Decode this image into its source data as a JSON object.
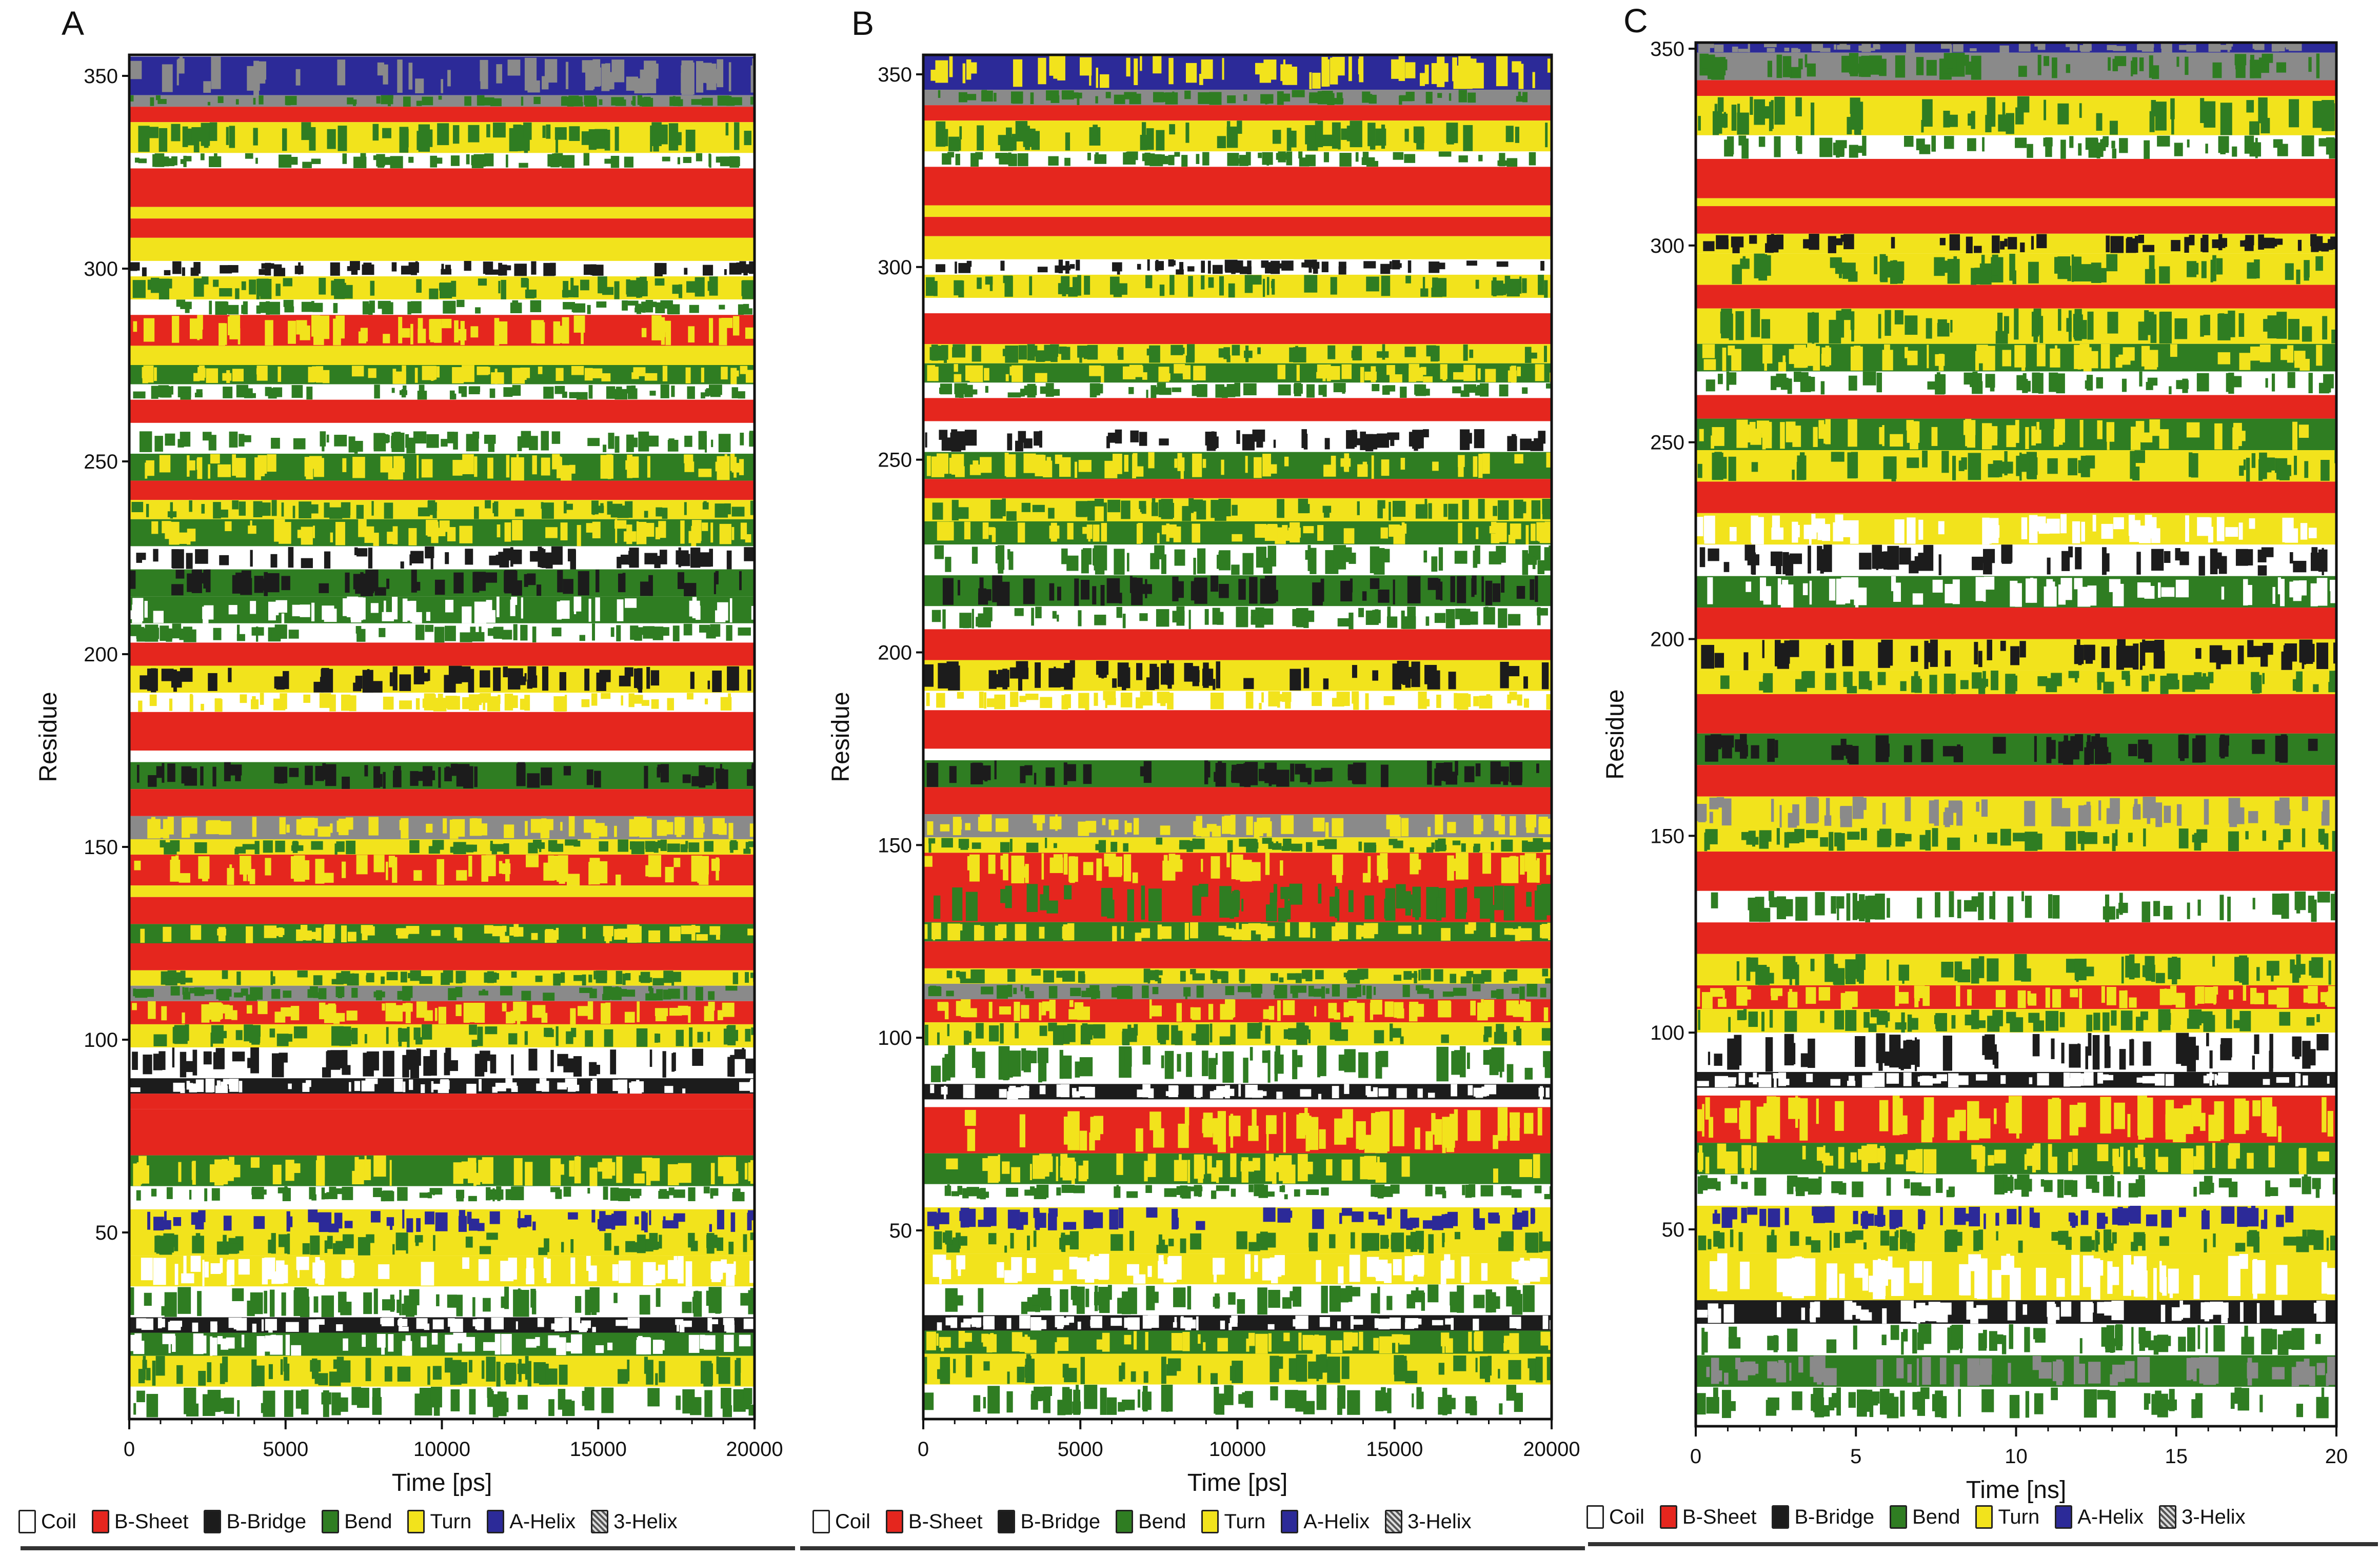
{
  "legend_items": [
    {
      "code": "C",
      "label": "Coil",
      "color": "#ffffff"
    },
    {
      "code": "E",
      "label": "B-Sheet",
      "color": "#e5261e"
    },
    {
      "code": "B",
      "label": "B-Bridge",
      "color": "#1c1c1c"
    },
    {
      "code": "S",
      "label": "Bend",
      "color": "#2f7d22"
    },
    {
      "code": "T",
      "label": "Turn",
      "color": "#f2e31c"
    },
    {
      "code": "H",
      "label": "A-Helix",
      "color": "#2c2a98"
    },
    {
      "code": "G",
      "label": "3-Helix",
      "color": "#8a8a8a"
    }
  ],
  "chart_data": [
    {
      "panel": "A",
      "type": "heatmap",
      "xlabel": "Time [ps]",
      "ylabel": "Residue",
      "xlim": [
        0,
        20000
      ],
      "ylim": [
        1,
        355
      ],
      "xticks": [
        0,
        5000,
        10000,
        15000,
        20000
      ],
      "yticks": [
        50,
        100,
        150,
        200,
        250,
        300,
        350
      ],
      "bands": [
        [
          345,
          355,
          "H",
          "G"
        ],
        [
          342,
          345,
          "G",
          "S"
        ],
        [
          338,
          342,
          "E"
        ],
        [
          330,
          338,
          "T",
          "S"
        ],
        [
          326,
          330,
          "C",
          "S"
        ],
        [
          316,
          326,
          "E"
        ],
        [
          313,
          316,
          "T"
        ],
        [
          308,
          313,
          "E"
        ],
        [
          302,
          308,
          "T"
        ],
        [
          298,
          302,
          "C",
          "B"
        ],
        [
          292,
          298,
          "T",
          "S"
        ],
        [
          288,
          292,
          "C",
          "S"
        ],
        [
          280,
          288,
          "E",
          "T"
        ],
        [
          275,
          280,
          "T"
        ],
        [
          270,
          275,
          "S",
          "T"
        ],
        [
          266,
          270,
          "C",
          "S"
        ],
        [
          260,
          266,
          "E"
        ],
        [
          252,
          258,
          "C",
          "S"
        ],
        [
          245,
          252,
          "S",
          "T"
        ],
        [
          240,
          245,
          "E"
        ],
        [
          235,
          240,
          "T",
          "S"
        ],
        [
          228,
          235,
          "S",
          "T"
        ],
        [
          222,
          228,
          "C",
          "B"
        ],
        [
          215,
          222,
          "S",
          "B"
        ],
        [
          208,
          215,
          "S",
          "C"
        ],
        [
          203,
          208,
          "C",
          "S"
        ],
        [
          197,
          203,
          "E"
        ],
        [
          190,
          197,
          "T",
          "B"
        ],
        [
          185,
          190,
          "C",
          "T"
        ],
        [
          175,
          185,
          "E"
        ],
        [
          172,
          175,
          "C"
        ],
        [
          165,
          172,
          "S",
          "B"
        ],
        [
          158,
          165,
          "E"
        ],
        [
          152,
          158,
          "G",
          "T"
        ],
        [
          148,
          152,
          "T",
          "S"
        ],
        [
          140,
          148,
          "E",
          "T"
        ],
        [
          137,
          140,
          "T"
        ],
        [
          130,
          137,
          "E"
        ],
        [
          125,
          130,
          "S",
          "T"
        ],
        [
          118,
          125,
          "E"
        ],
        [
          114,
          118,
          "T",
          "S"
        ],
        [
          110,
          114,
          "G",
          "S"
        ],
        [
          104,
          110,
          "E",
          "T"
        ],
        [
          98,
          104,
          "T",
          "S"
        ],
        [
          90,
          98,
          "C",
          "B"
        ],
        [
          86,
          90,
          "B",
          "C"
        ],
        [
          82,
          86,
          "E"
        ],
        [
          76,
          79,
          "T"
        ],
        [
          70,
          82,
          "E"
        ],
        [
          62,
          70,
          "S",
          "T"
        ],
        [
          58,
          62,
          "C",
          "S"
        ],
        [
          50,
          56,
          "T",
          "H"
        ],
        [
          44,
          50,
          "T",
          "S"
        ],
        [
          36,
          44,
          "T",
          "C"
        ],
        [
          28,
          36,
          "C",
          "S"
        ],
        [
          24,
          28,
          "B",
          "C"
        ],
        [
          18,
          24,
          "S",
          "C"
        ],
        [
          10,
          18,
          "T",
          "S"
        ],
        [
          2,
          10,
          "C",
          "S"
        ]
      ]
    },
    {
      "panel": "B",
      "type": "heatmap",
      "xlabel": "Time [ps]",
      "ylabel": "Residue",
      "xlim": [
        0,
        20000
      ],
      "ylim": [
        1,
        355
      ],
      "xticks": [
        0,
        5000,
        10000,
        15000,
        20000
      ],
      "yticks": [
        50,
        100,
        150,
        200,
        250,
        300,
        350
      ],
      "bands": [
        [
          346,
          355,
          "H",
          "T"
        ],
        [
          342,
          346,
          "G",
          "S"
        ],
        [
          338,
          342,
          "E"
        ],
        [
          330,
          338,
          "T",
          "S"
        ],
        [
          326,
          330,
          "C",
          "S"
        ],
        [
          316,
          326,
          "E"
        ],
        [
          313,
          316,
          "T"
        ],
        [
          308,
          313,
          "E"
        ],
        [
          302,
          308,
          "T"
        ],
        [
          298,
          302,
          "C",
          "B"
        ],
        [
          292,
          298,
          "T",
          "S"
        ],
        [
          288,
          292,
          "C"
        ],
        [
          280,
          288,
          "E"
        ],
        [
          275,
          280,
          "T",
          "S"
        ],
        [
          270,
          275,
          "S",
          "T"
        ],
        [
          266,
          270,
          "C",
          "S"
        ],
        [
          260,
          266,
          "E"
        ],
        [
          252,
          258,
          "C",
          "B"
        ],
        [
          245,
          252,
          "S",
          "T"
        ],
        [
          240,
          245,
          "E"
        ],
        [
          234,
          240,
          "T",
          "S"
        ],
        [
          228,
          234,
          "S",
          "T"
        ],
        [
          220,
          228,
          "C",
          "S"
        ],
        [
          212,
          220,
          "S",
          "B"
        ],
        [
          206,
          212,
          "C",
          "S"
        ],
        [
          198,
          206,
          "E"
        ],
        [
          190,
          198,
          "T",
          "B"
        ],
        [
          185,
          190,
          "C",
          "T"
        ],
        [
          175,
          185,
          "E"
        ],
        [
          172,
          175,
          "C"
        ],
        [
          165,
          172,
          "S",
          "B"
        ],
        [
          158,
          165,
          "E"
        ],
        [
          152,
          158,
          "G",
          "T"
        ],
        [
          148,
          152,
          "T",
          "S"
        ],
        [
          140,
          148,
          "E",
          "T"
        ],
        [
          130,
          140,
          "E",
          "S"
        ],
        [
          125,
          130,
          "S",
          "T"
        ],
        [
          118,
          125,
          "E"
        ],
        [
          114,
          118,
          "T",
          "S"
        ],
        [
          110,
          114,
          "G",
          "S"
        ],
        [
          104,
          110,
          "E",
          "T"
        ],
        [
          98,
          104,
          "T",
          "S"
        ],
        [
          88,
          98,
          "C",
          "S"
        ],
        [
          84,
          88,
          "B",
          "C"
        ],
        [
          70,
          82,
          "E",
          "T"
        ],
        [
          62,
          70,
          "S",
          "T"
        ],
        [
          58,
          62,
          "C",
          "S"
        ],
        [
          50,
          56,
          "T",
          "H"
        ],
        [
          44,
          50,
          "T",
          "S"
        ],
        [
          36,
          44,
          "T",
          "C"
        ],
        [
          28,
          36,
          "C",
          "S"
        ],
        [
          24,
          28,
          "B",
          "C"
        ],
        [
          18,
          24,
          "S",
          "T"
        ],
        [
          10,
          18,
          "T",
          "S"
        ],
        [
          2,
          10,
          "C",
          "S"
        ]
      ]
    },
    {
      "panel": "C",
      "type": "heatmap",
      "xlabel": "Time [ns]",
      "ylabel": "Residue",
      "xlim": [
        0,
        20
      ],
      "ylim": [
        1,
        355
      ],
      "xticks": [
        0,
        5,
        10,
        15,
        20
      ],
      "yticks": [
        50,
        100,
        150,
        200,
        250,
        300,
        350
      ],
      "bands": [
        [
          349,
          355,
          "H",
          "G"
        ],
        [
          342,
          349,
          "G",
          "S"
        ],
        [
          338,
          342,
          "E"
        ],
        [
          328,
          338,
          "T",
          "S"
        ],
        [
          322,
          328,
          "C",
          "S"
        ],
        [
          312,
          322,
          "E"
        ],
        [
          310,
          312,
          "T"
        ],
        [
          303,
          310,
          "E"
        ],
        [
          298,
          303,
          "T",
          "B"
        ],
        [
          290,
          298,
          "T",
          "S"
        ],
        [
          284,
          290,
          "E"
        ],
        [
          275,
          284,
          "T",
          "S"
        ],
        [
          268,
          275,
          "S",
          "T"
        ],
        [
          262,
          268,
          "C",
          "S"
        ],
        [
          256,
          262,
          "E"
        ],
        [
          248,
          256,
          "S",
          "T"
        ],
        [
          240,
          248,
          "T",
          "S"
        ],
        [
          232,
          240,
          "E"
        ],
        [
          224,
          232,
          "T",
          "C"
        ],
        [
          216,
          224,
          "C",
          "B"
        ],
        [
          208,
          216,
          "S",
          "C"
        ],
        [
          200,
          208,
          "E"
        ],
        [
          192,
          200,
          "T",
          "B"
        ],
        [
          186,
          192,
          "T",
          "S"
        ],
        [
          176,
          186,
          "E"
        ],
        [
          168,
          176,
          "S",
          "B"
        ],
        [
          160,
          168,
          "E"
        ],
        [
          152,
          160,
          "T",
          "G"
        ],
        [
          146,
          152,
          "T",
          "S"
        ],
        [
          136,
          146,
          "E"
        ],
        [
          128,
          136,
          "C",
          "S"
        ],
        [
          120,
          128,
          "E"
        ],
        [
          112,
          120,
          "T",
          "S"
        ],
        [
          106,
          112,
          "E",
          "T"
        ],
        [
          100,
          106,
          "T",
          "S"
        ],
        [
          90,
          100,
          "C",
          "B"
        ],
        [
          86,
          90,
          "B",
          "C"
        ],
        [
          72,
          84,
          "E",
          "T"
        ],
        [
          64,
          72,
          "S",
          "T"
        ],
        [
          58,
          64,
          "C",
          "S"
        ],
        [
          50,
          56,
          "T",
          "H"
        ],
        [
          44,
          50,
          "T",
          "S"
        ],
        [
          32,
          44,
          "T",
          "C"
        ],
        [
          26,
          32,
          "B",
          "C"
        ],
        [
          18,
          26,
          "C",
          "S"
        ],
        [
          10,
          18,
          "S",
          "G"
        ],
        [
          2,
          10,
          "C",
          "S"
        ]
      ]
    }
  ]
}
